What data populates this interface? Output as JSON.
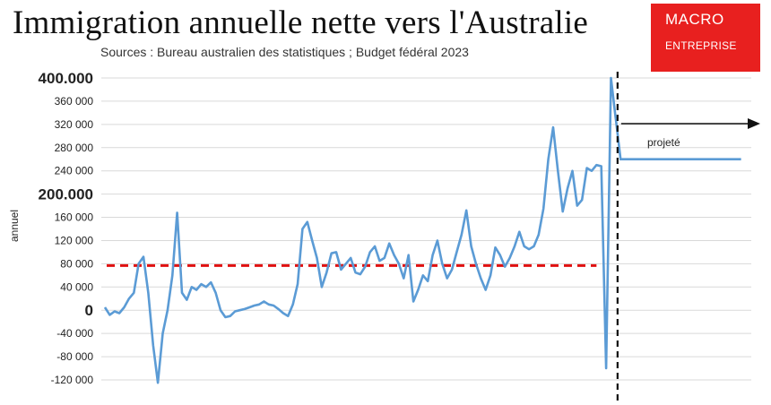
{
  "header": {
    "title": "Immigration annuelle nette vers l'Australie",
    "subtitle": "Sources : Bureau australien des statistiques ; Budget fédéral 2023"
  },
  "logo": {
    "line1": "MACRO",
    "line2": "ENTREPRISE"
  },
  "colors": {
    "series": "#5b9bd5",
    "reference": "#e01010",
    "logo": "#e8201f",
    "grid": "#d9d9d9"
  },
  "chart_data": {
    "type": "line",
    "title": "Immigration annuelle nette vers l'Australie",
    "subtitle": "Sources : Bureau australien des statistiques ; Budget fédéral 2023",
    "ylabel": "annuel",
    "ylim": [
      -120000,
      400000
    ],
    "yticks": [
      {
        "value": 400000,
        "label": "400.000",
        "bold": true
      },
      {
        "value": 360000,
        "label": "360 000"
      },
      {
        "value": 320000,
        "label": "320 000"
      },
      {
        "value": 280000,
        "label": "280 000"
      },
      {
        "value": 240000,
        "label": "240 000"
      },
      {
        "value": 200000,
        "label": "200.000",
        "bold": true
      },
      {
        "value": 160000,
        "label": "160 000"
      },
      {
        "value": 120000,
        "label": "120 000"
      },
      {
        "value": 80000,
        "label": "80 000"
      },
      {
        "value": 40000,
        "label": "40 000"
      },
      {
        "value": 0,
        "label": "0",
        "bold": true
      },
      {
        "value": -40000,
        "label": "-40 000"
      },
      {
        "value": -80000,
        "label": "-80 000"
      },
      {
        "value": -120000,
        "label": "-120 000"
      }
    ],
    "grid": "horizontal",
    "series": [
      {
        "values": [
          5000,
          -8000,
          -2000,
          -5000,
          5000,
          20000,
          30000,
          80000,
          92000,
          30000,
          -60000,
          -125000,
          -40000,
          0,
          60000,
          168000,
          30000,
          18000,
          40000,
          35000,
          45000,
          40000,
          48000,
          30000,
          0,
          -12000,
          -10000,
          -2000,
          0,
          2000,
          5000,
          8000,
          10000,
          15000,
          10000,
          8000,
          2000,
          -5000,
          -10000,
          10000,
          45000,
          140000,
          152000,
          120000,
          90000,
          40000,
          65000,
          98000,
          100000,
          70000,
          80000,
          90000,
          65000,
          62000,
          75000,
          100000,
          110000,
          85000,
          90000,
          115000,
          95000,
          80000,
          55000,
          95000,
          15000,
          35000,
          60000,
          50000,
          95000,
          120000,
          80000,
          55000,
          70000,
          100000,
          130000,
          172000,
          110000,
          80000,
          55000,
          35000,
          60000,
          108000,
          95000,
          75000,
          90000,
          110000,
          135000,
          110000,
          105000,
          110000,
          130000,
          175000,
          260000,
          315000,
          240000,
          170000,
          210000,
          240000,
          180000,
          190000,
          245000,
          240000,
          250000,
          248000,
          -100000,
          400000,
          330000
        ],
        "projected": {
          "label": "projeté",
          "value": 260000,
          "length": 26
        }
      }
    ],
    "reference_line": {
      "value": 77000,
      "style": "dashed"
    },
    "annotations": [
      {
        "type": "vertical-divider",
        "index": 106
      }
    ]
  }
}
